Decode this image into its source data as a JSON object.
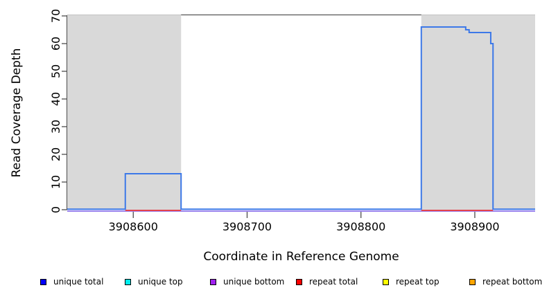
{
  "figure": {
    "xlabel": "Coordinate in Reference Genome",
    "ylabel": "Read Coverage Depth"
  },
  "chart_data": {
    "type": "line",
    "subtype": "step-coverage",
    "title": "",
    "xlabel": "Coordinate in Reference Genome",
    "ylabel": "Read Coverage Depth",
    "xlim": [
      3908542,
      3908953
    ],
    "ylim": [
      0,
      70
    ],
    "x_ticks": [
      3908600,
      3908700,
      3908800,
      3908900
    ],
    "y_ticks": [
      0,
      10,
      20,
      30,
      40,
      50,
      60,
      70
    ],
    "grid": false,
    "legend_position": "bottom",
    "shaded_regions": {
      "color": "#d9d9d9",
      "x_ranges": [
        [
          3908542,
          3908642
        ],
        [
          3908853,
          3908953
        ]
      ]
    },
    "series": [
      {
        "name": "unique total",
        "type": "step",
        "color": "#3c78e8",
        "segments": [
          [
            3908542,
            3908593,
            0
          ],
          [
            3908593,
            3908642,
            13
          ],
          [
            3908642,
            3908853,
            0
          ],
          [
            3908853,
            3908892,
            66
          ],
          [
            3908892,
            3908895,
            65
          ],
          [
            3908895,
            3908914,
            64
          ],
          [
            3908914,
            3908916,
            60
          ],
          [
            3908916,
            3908953,
            0
          ]
        ]
      },
      {
        "name": "repeat total",
        "type": "zero-baseline",
        "color": "#e4434d",
        "visible_zero_spans": [
          [
            3908593,
            3908642
          ],
          [
            3908853,
            3908916
          ]
        ]
      },
      {
        "name": "unique bottom",
        "type": "zero-baseline",
        "color": "#9b84ee",
        "visible_zero_spans": [
          [
            3908542,
            3908953
          ]
        ]
      }
    ],
    "colors": {
      "shading": "#d9d9d9",
      "shading_edge": "#c2c2c2",
      "axis": "#4a4a4a",
      "box_top": "#555555"
    }
  },
  "legend": {
    "items": [
      {
        "label": "unique total",
        "color": "#0000ff"
      },
      {
        "label": "unique top",
        "color": "#00eeee"
      },
      {
        "label": "unique bottom",
        "color": "#a020f0"
      },
      {
        "label": "repeat total",
        "color": "#ff0000"
      },
      {
        "label": "repeat top",
        "color": "#ffff00"
      },
      {
        "label": "repeat bottom",
        "color": "#ffa500"
      }
    ]
  }
}
